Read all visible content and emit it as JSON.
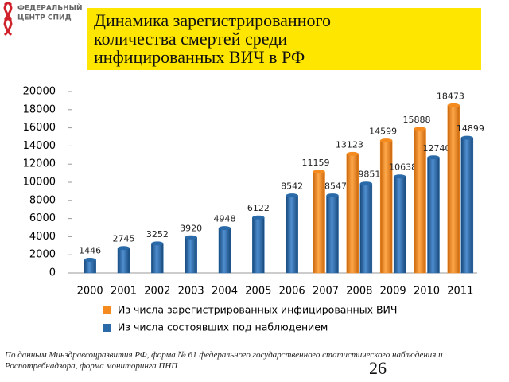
{
  "logo": {
    "lines": [
      "ФЕДЕРАЛЬНЫЙ",
      "ЦЕНТР СПИД"
    ]
  },
  "chart_data": {
    "type": "bar",
    "title": [
      "Динамика зарегистрированного",
      "количества смертей среди",
      "инфицированных ВИЧ в РФ"
    ],
    "categories": [
      "2000",
      "2001",
      "2002",
      "2003",
      "2004",
      "2005",
      "2006",
      "2007",
      "2008",
      "2009",
      "2010",
      "2011"
    ],
    "series": [
      {
        "name": "Из числа зарегистрированных инфицированных ВИЧ",
        "color": "#f58a1f",
        "values": [
          null,
          null,
          null,
          null,
          null,
          null,
          null,
          11159,
          13123,
          14599,
          15888,
          18473
        ]
      },
      {
        "name": "Из числа состоявших под наблюдением",
        "color": "#2a6aa8",
        "values": [
          1446,
          2745,
          3252,
          3920,
          4948,
          6122,
          8542,
          8547,
          9851,
          10638,
          12740,
          14899
        ]
      }
    ],
    "ylim": [
      0,
      20000
    ],
    "yticks": [
      0,
      2000,
      4000,
      6000,
      8000,
      10000,
      12000,
      14000,
      16000,
      18000,
      20000
    ],
    "legend": "bottom"
  },
  "footnote": "По данным Минздравсоцразвития РФ, форма № 61 федерального государственного статистического наблюдения и Роспотребнадзора, форма мониторинга ПНП",
  "page_number": "26"
}
